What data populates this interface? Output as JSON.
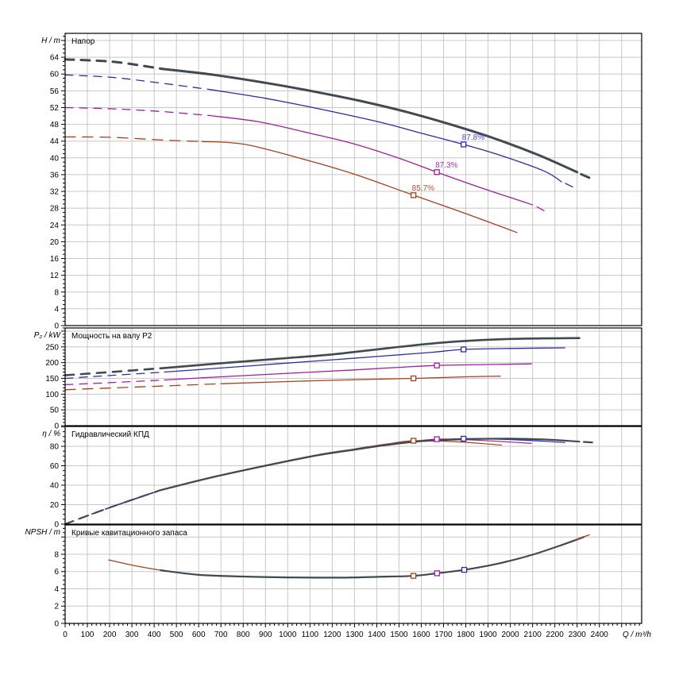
{
  "chart_data": {
    "type": "line",
    "description": "Pump performance curves, four stacked panels sharing one flow axis",
    "x_axis": {
      "unit_label": "Q / m³/h",
      "min": 0,
      "max": 2590,
      "label_step": 100,
      "label_max": 2400,
      "minor_step": 20
    },
    "colors": {
      "dark": "#3f4a52",
      "blue": "#2f2b9e",
      "magenta": "#a01e9b",
      "red": "#a34119",
      "grid": "#c8c8c8",
      "frame": "#000000",
      "text": "#000000",
      "marker_fill": "#ffffff"
    },
    "label_colors": {
      "blue": "#4a46c8",
      "magenta": "#b52cb0",
      "red": "#b0522a"
    },
    "panels": [
      {
        "id": "head",
        "title": "Напор",
        "unit_label": "H / m",
        "y_domain": 69.7,
        "y_label_step": 4,
        "y_label_max": 64,
        "y_minor_step": 1,
        "grid_step": 4,
        "series": [
          {
            "color": "red",
            "width": 1.3,
            "dash_until": 520,
            "dash": "13 9",
            "points": [
              [
                0,
                45
              ],
              [
                210,
                44.9
              ],
              [
                420,
                44.3
              ],
              [
                615,
                43.9
              ],
              [
                810,
                43.2
              ],
              [
                1090,
                39.4
              ],
              [
                1300,
                36.1
              ],
              [
                1565,
                31.1
              ],
              [
                1800,
                26.7
              ],
              [
                2030,
                22.2
              ]
            ]
          },
          {
            "color": "magenta",
            "width": 1.3,
            "dash_until": 440,
            "dash": "10 8",
            "points": [
              [
                0,
                52
              ],
              [
                210,
                51.7
              ],
              [
                420,
                51.1
              ],
              [
                650,
                50.1
              ],
              [
                870,
                48.6
              ],
              [
                1090,
                46
              ],
              [
                1300,
                43.3
              ],
              [
                1500,
                39.9
              ],
              [
                1670,
                36.6
              ],
              [
                1850,
                33.2
              ],
              [
                2100,
                28.8
              ]
            ],
            "tail": [
              [
                2120,
                28.3
              ],
              [
                2165,
                27
              ]
            ]
          },
          {
            "color": "blue",
            "width": 1.3,
            "dash_until": 440,
            "dash": "10 8",
            "points": [
              [
                0,
                59.8
              ],
              [
                210,
                59.2
              ],
              [
                420,
                57.9
              ],
              [
                650,
                56.3
              ],
              [
                900,
                54.2
              ],
              [
                1140,
                51.7
              ],
              [
                1400,
                48.7
              ],
              [
                1600,
                45.9
              ],
              [
                1790,
                43.2
              ],
              [
                1950,
                40.7
              ],
              [
                2150,
                36.9
              ],
              [
                2230,
                34.3
              ]
            ],
            "tail": [
              [
                2248,
                33.9
              ],
              [
                2290,
                32.8
              ]
            ]
          },
          {
            "color": "dark",
            "width": 3,
            "dash_until": 440,
            "dash": "11 9",
            "points": [
              [
                0,
                63.5
              ],
              [
                220,
                62.9
              ],
              [
                440,
                61.2
              ],
              [
                670,
                59.8
              ],
              [
                900,
                57.9
              ],
              [
                1100,
                56
              ],
              [
                1325,
                53.6
              ],
              [
                1530,
                51
              ],
              [
                1730,
                48
              ],
              [
                1930,
                44.6
              ],
              [
                2130,
                40.6
              ],
              [
                2300,
                36.6
              ]
            ],
            "tail": [
              [
                2318,
                36.1
              ],
              [
                2362,
                35.1
              ]
            ]
          }
        ],
        "markers": [
          {
            "color": "red",
            "q": 1565,
            "v": 31.1,
            "label": "85.7%"
          },
          {
            "color": "magenta",
            "q": 1670,
            "v": 36.6,
            "label": "87.3%"
          },
          {
            "color": "blue",
            "q": 1790,
            "v": 43.2,
            "label": "87.8%"
          }
        ]
      },
      {
        "id": "power",
        "title": "Мощность на валу P2",
        "unit_label": "P₂ / kW",
        "y_domain": 310,
        "y_label_step": 50,
        "y_label_max": 250,
        "y_minor_step": 10,
        "grid_step": 50,
        "series": [
          {
            "color": "red",
            "width": 1.3,
            "dash_until": 520,
            "dash": "13 9",
            "points": [
              [
                0,
                114
              ],
              [
                220,
                120
              ],
              [
                446,
                126
              ],
              [
                700,
                133
              ],
              [
                1000,
                140
              ],
              [
                1300,
                146
              ],
              [
                1565,
                150
              ],
              [
                1800,
                155
              ],
              [
                1955,
                157
              ]
            ]
          },
          {
            "color": "magenta",
            "width": 1.3,
            "dash_until": 440,
            "dash": "10 8",
            "points": [
              [
                0,
                130
              ],
              [
                220,
                137
              ],
              [
                446,
                145
              ],
              [
                700,
                155
              ],
              [
                1000,
                166
              ],
              [
                1300,
                177
              ],
              [
                1500,
                185
              ],
              [
                1670,
                191
              ],
              [
                1900,
                194
              ],
              [
                2095,
                196
              ]
            ]
          },
          {
            "color": "blue",
            "width": 1.3,
            "dash_until": 440,
            "dash": "10 8",
            "points": [
              [
                0,
                150
              ],
              [
                220,
                160
              ],
              [
                446,
                170
              ],
              [
                700,
                183
              ],
              [
                950,
                196
              ],
              [
                1200,
                209
              ],
              [
                1450,
                222
              ],
              [
                1650,
                233
              ],
              [
                1790,
                242
              ],
              [
                2000,
                245
              ],
              [
                2245,
                247
              ]
            ]
          },
          {
            "color": "dark",
            "width": 2.6,
            "dash_until": 440,
            "dash": "11 9",
            "points": [
              [
                0,
                160
              ],
              [
                220,
                171
              ],
              [
                446,
                183
              ],
              [
                700,
                198
              ],
              [
                950,
                212
              ],
              [
                1200,
                226
              ],
              [
                1450,
                246
              ],
              [
                1700,
                264
              ],
              [
                1950,
                274
              ],
              [
                2150,
                277
              ],
              [
                2310,
                278
              ]
            ]
          }
        ],
        "markers": [
          {
            "color": "red",
            "q": 1565,
            "v": 150
          },
          {
            "color": "magenta",
            "q": 1670,
            "v": 191
          },
          {
            "color": "blue",
            "q": 1790,
            "v": 242
          }
        ]
      },
      {
        "id": "eff",
        "title": "Гидравлический КПД",
        "unit_label": "η / %",
        "y_domain": 100.4,
        "y_label_step": 20,
        "y_label_max": 80,
        "y_minor_step": 5,
        "grid_step": 20,
        "series": [
          {
            "color": "red",
            "width": 1.2,
            "dash_until": 430,
            "dash": "10 8",
            "points": [
              [
                0,
                0.3
              ],
              [
                200,
                17.2
              ],
              [
                430,
                35.3
              ],
              [
                650,
                48
              ],
              [
                890,
                60
              ],
              [
                1130,
                71.2
              ],
              [
                1300,
                77.3
              ],
              [
                1450,
                82.5
              ],
              [
                1565,
                85.7
              ],
              [
                1750,
                84.8
              ],
              [
                1960,
                81.2
              ]
            ]
          },
          {
            "color": "magenta",
            "width": 1.2,
            "dash_until": 430,
            "dash": "10 8",
            "points": [
              [
                0,
                0
              ],
              [
                200,
                16.9
              ],
              [
                430,
                34.9
              ],
              [
                650,
                47.6
              ],
              [
                890,
                59.6
              ],
              [
                1130,
                70.8
              ],
              [
                1300,
                76.8
              ],
              [
                1460,
                82
              ],
              [
                1670,
                87.3
              ],
              [
                1850,
                86.3
              ],
              [
                2095,
                83
              ]
            ]
          },
          {
            "color": "blue",
            "width": 1.2,
            "dash_until": 430,
            "dash": "10 8",
            "points": [
              [
                0,
                0
              ],
              [
                200,
                16.8
              ],
              [
                430,
                34.8
              ],
              [
                650,
                47.3
              ],
              [
                890,
                59.3
              ],
              [
                1130,
                70.3
              ],
              [
                1300,
                76.3
              ],
              [
                1450,
                81.3
              ],
              [
                1620,
                85.5
              ],
              [
                1790,
                87.8
              ],
              [
                1980,
                87
              ],
              [
                2120,
                85.6
              ],
              [
                2245,
                83.8
              ]
            ]
          },
          {
            "color": "dark",
            "width": 2.2,
            "dash_until": 430,
            "dash": "11 9",
            "points": [
              [
                0,
                0
              ],
              [
                200,
                17
              ],
              [
                430,
                35
              ],
              [
                650,
                47.5
              ],
              [
                890,
                59.5
              ],
              [
                1130,
                70.5
              ],
              [
                1300,
                76.5
              ],
              [
                1450,
                81.5
              ],
              [
                1600,
                85.3
              ],
              [
                1800,
                87.3
              ],
              [
                2000,
                87.8
              ],
              [
                2150,
                87
              ],
              [
                2310,
                84.8
              ]
            ],
            "tail": [
              [
                2330,
                84.5
              ],
              [
                2368,
                84
              ]
            ]
          }
        ],
        "markers": [
          {
            "color": "red",
            "q": 1565,
            "v": 85.7
          },
          {
            "color": "magenta",
            "q": 1670,
            "v": 87.3
          },
          {
            "color": "blue",
            "q": 1790,
            "v": 87.8
          }
        ]
      },
      {
        "id": "npsh",
        "title": "Кривые кавитационного запаса",
        "unit_label": "NPSH / m",
        "y_domain": 11.4,
        "y_label_step": 2,
        "y_label_max": 8,
        "y_minor_step": 0.5,
        "grid_step": 2,
        "series": [
          {
            "color": "red",
            "width": 1.3,
            "points": [
              [
                196,
                7.35
              ],
              [
                300,
                6.75
              ],
              [
                420,
                6.2
              ],
              [
                600,
                5.62
              ],
              [
                743,
                5.42
              ]
            ]
          },
          {
            "color": "dark",
            "width": 2.2,
            "points": [
              [
                430,
                6.15
              ],
              [
                600,
                5.62
              ],
              [
                800,
                5.42
              ],
              [
                1000,
                5.32
              ],
              [
                1250,
                5.3
              ],
              [
                1450,
                5.42
              ],
              [
                1565,
                5.5
              ],
              [
                1671,
                5.8
              ],
              [
                1793,
                6.2
              ],
              [
                1950,
                6.95
              ],
              [
                2100,
                7.95
              ],
              [
                2250,
                9.25
              ],
              [
                2330,
                10.0
              ]
            ]
          },
          {
            "color": "red",
            "width": 1.3,
            "points": [
              [
                2290,
                9.65
              ],
              [
                2355,
                10.25
              ]
            ]
          }
        ],
        "markers": [
          {
            "color": "red",
            "q": 1565,
            "v": 5.5
          },
          {
            "color": "magenta",
            "q": 1671,
            "v": 5.8
          },
          {
            "color": "blue",
            "q": 1793,
            "v": 6.2
          }
        ]
      }
    ]
  }
}
